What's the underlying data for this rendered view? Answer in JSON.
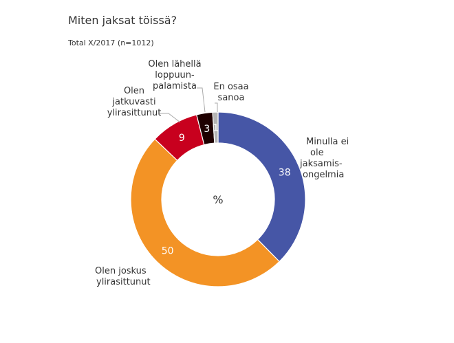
{
  "chart_data": {
    "type": "pie",
    "donut": true,
    "title": "Miten jaksat töissä?",
    "subtitle": "Total X/2017  (n=1012)",
    "center_label": "%",
    "slices": [
      {
        "label": "Minulla ei ole jaksamis-ongelmia",
        "lines": [
          "Minulla  ei",
          "ole",
          "jaksamis-",
          "ongelmia"
        ],
        "value": 38,
        "color": "#4656A6"
      },
      {
        "label": "Olen joskus ylirasittunut",
        "lines": [
          "Olen joskus",
          "ylirasittunut"
        ],
        "value": 50,
        "color": "#F39325"
      },
      {
        "label": "Olen jatkuvasti ylirasittunut",
        "lines": [
          "Olen",
          "jatkuvasti",
          "ylirasittunut"
        ],
        "value": 9,
        "color": "#C8001E"
      },
      {
        "label": "Olen lähellä loppuun-palamista",
        "lines": [
          "Olen lähellä",
          "loppuun-",
          "palamista"
        ],
        "value": 3,
        "color": "#1E0000"
      },
      {
        "label": "En osaa sanoa",
        "lines": [
          "En osaa",
          "sanoa"
        ],
        "value": 1,
        "color": "#B4B4B4"
      }
    ]
  }
}
